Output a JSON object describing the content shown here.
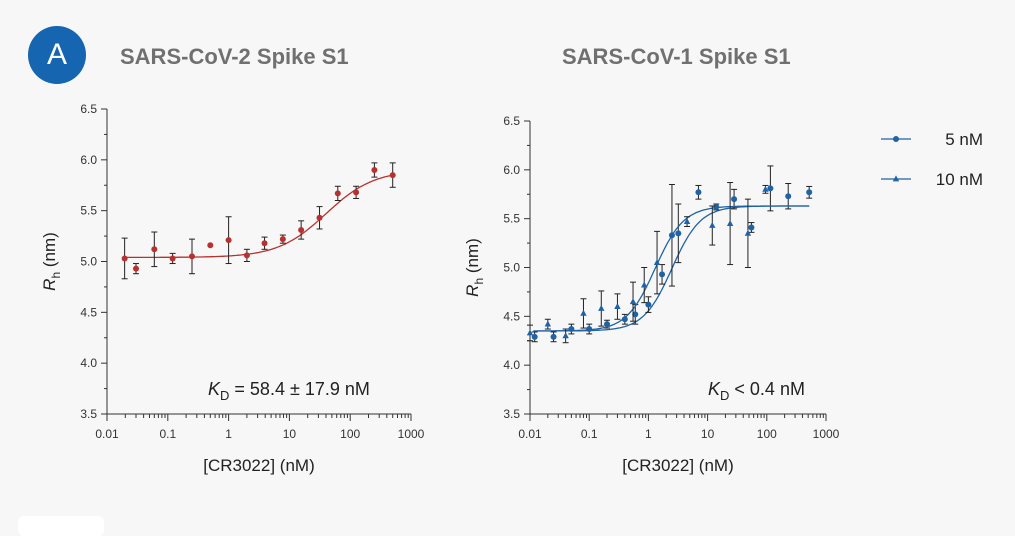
{
  "panel": {
    "label": "A"
  },
  "chart_data": [
    {
      "type": "scatter",
      "title": "SARS-CoV-2 Spike S1",
      "xlabel": "[CR3022] (nM)",
      "ylabel_main": "R",
      "ylabel_sub": "h",
      "ylabel_unit": " (nm)",
      "xscale": "log",
      "xlim": [
        0.01,
        1000
      ],
      "ylim": [
        3.5,
        6.5
      ],
      "xticks": [
        "0.01",
        "0.1",
        "1",
        "10",
        "100",
        "1000"
      ],
      "yticks": [
        "3.5",
        "4.0",
        "4.5",
        "5.0",
        "5.5",
        "6.0",
        "6.5"
      ],
      "annotation": {
        "main": "K",
        "sub": "D",
        "text": " = 58.4 ± 17.9 nM"
      },
      "series": [
        {
          "name": "SARS-CoV-2",
          "color": "#b8312f",
          "marker": "circle",
          "fit": {
            "bottom": 5.04,
            "top": 5.9,
            "ec50": 40,
            "hill": 1.1
          },
          "points": [
            {
              "x": 0.0195,
              "y": 5.03,
              "err": 0.2
            },
            {
              "x": 0.03,
              "y": 4.93,
              "err": 0.05
            },
            {
              "x": 0.06,
              "y": 5.12,
              "err": 0.17
            },
            {
              "x": 0.12,
              "y": 5.03,
              "err": 0.05
            },
            {
              "x": 0.25,
              "y": 5.05,
              "err": 0.17
            },
            {
              "x": 0.5,
              "y": 5.16,
              "err": 0
            },
            {
              "x": 1.0,
              "y": 5.21,
              "err": 0.23
            },
            {
              "x": 2.0,
              "y": 5.06,
              "err": 0.06
            },
            {
              "x": 3.9,
              "y": 5.18,
              "err": 0.06
            },
            {
              "x": 7.8,
              "y": 5.22,
              "err": 0.04
            },
            {
              "x": 15.6,
              "y": 5.31,
              "err": 0.09
            },
            {
              "x": 31.3,
              "y": 5.43,
              "err": 0.11
            },
            {
              "x": 62.5,
              "y": 5.67,
              "err": 0.07
            },
            {
              "x": 125,
              "y": 5.68,
              "err": 0.06
            },
            {
              "x": 250,
              "y": 5.9,
              "err": 0.07
            },
            {
              "x": 500,
              "y": 5.85,
              "err": 0.12
            }
          ]
        }
      ]
    },
    {
      "type": "scatter",
      "title": "SARS-CoV-1 Spike S1",
      "xlabel": "[CR3022] (nM)",
      "ylabel_main": "R",
      "ylabel_sub": "h",
      "ylabel_unit": " (nm)",
      "xscale": "log",
      "xlim": [
        0.01,
        1000
      ],
      "ylim": [
        3.5,
        6.5
      ],
      "xticks": [
        "0.01",
        "0.1",
        "1",
        "10",
        "100",
        "1000"
      ],
      "yticks": [
        "3.5",
        "4.0",
        "4.5",
        "5.0",
        "5.5",
        "6.0",
        "6.5"
      ],
      "annotation": {
        "main": "K",
        "sub": "D",
        "text": " < 0.4 nM"
      },
      "legend": {
        "position": "right"
      },
      "series": [
        {
          "name": "5 nM",
          "color": "#1f63a6",
          "marker": "circle",
          "fit": {
            "bottom": 4.35,
            "top": 5.63,
            "ec50": 2.5,
            "hill": 1.8
          },
          "points": [
            {
              "x": 0.012,
              "y": 4.29,
              "err": 0.05
            },
            {
              "x": 0.025,
              "y": 4.29,
              "err": 0.05
            },
            {
              "x": 0.05,
              "y": 4.37,
              "err": 0.05
            },
            {
              "x": 0.1,
              "y": 4.37,
              "err": 0.05
            },
            {
              "x": 0.2,
              "y": 4.42,
              "err": 0.04
            },
            {
              "x": 0.4,
              "y": 4.47,
              "err": 0.05
            },
            {
              "x": 0.6,
              "y": 4.52,
              "err": 0.1
            },
            {
              "x": 1.0,
              "y": 4.62,
              "err": 0.08
            },
            {
              "x": 1.7,
              "y": 4.93,
              "err": 0.1
            },
            {
              "x": 2.5,
              "y": 5.33,
              "err": 0.52
            },
            {
              "x": 3.2,
              "y": 5.35,
              "err": 0.3
            },
            {
              "x": 7.0,
              "y": 5.77,
              "err": 0.07
            },
            {
              "x": 14,
              "y": 5.62,
              "err": 0.03
            },
            {
              "x": 28,
              "y": 5.7,
              "err": 0.1
            },
            {
              "x": 55,
              "y": 5.41,
              "err": 0.05
            },
            {
              "x": 115,
              "y": 5.81,
              "err": 0.23
            },
            {
              "x": 230,
              "y": 5.73,
              "err": 0.13
            },
            {
              "x": 520,
              "y": 5.77,
              "err": 0.06
            }
          ]
        },
        {
          "name": "10 nM",
          "color": "#1f63a6",
          "marker": "triangle",
          "fit": {
            "bottom": 4.35,
            "top": 5.63,
            "ec50": 1.3,
            "hill": 1.8
          },
          "points": [
            {
              "x": 0.01,
              "y": 4.33,
              "err": 0.08
            },
            {
              "x": 0.02,
              "y": 4.42,
              "err": 0.05
            },
            {
              "x": 0.04,
              "y": 4.3,
              "err": 0.07
            },
            {
              "x": 0.08,
              "y": 4.53,
              "err": 0.15
            },
            {
              "x": 0.16,
              "y": 4.58,
              "err": 0.18
            },
            {
              "x": 0.3,
              "y": 4.6,
              "err": 0.13
            },
            {
              "x": 0.55,
              "y": 4.65,
              "err": 0.2
            },
            {
              "x": 0.85,
              "y": 4.82,
              "err": 0.18
            },
            {
              "x": 1.4,
              "y": 5.05,
              "err": 0.32
            },
            {
              "x": 4.5,
              "y": 5.47,
              "err": 0.05
            },
            {
              "x": 12,
              "y": 5.43,
              "err": 0.2
            },
            {
              "x": 24,
              "y": 5.45,
              "err": 0.42
            },
            {
              "x": 48,
              "y": 5.35,
              "err": 0.35
            },
            {
              "x": 95,
              "y": 5.8,
              "err": 0.04
            }
          ]
        }
      ]
    }
  ]
}
